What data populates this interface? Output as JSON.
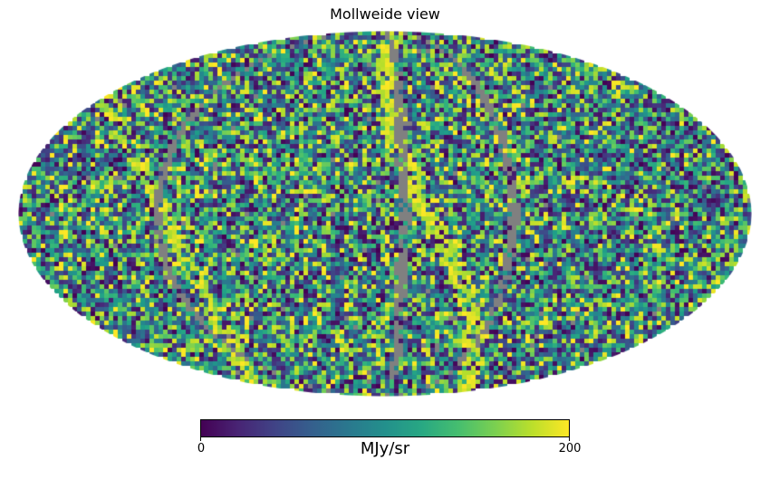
{
  "chart_data": {
    "type": "heatmap",
    "projection": "mollweide",
    "title": "Mollweide view",
    "colormap": "viridis",
    "bad_color": "#808080",
    "colorbar": {
      "min_label": "0",
      "max_label": "200",
      "unit": "MJy/sr",
      "range": [
        0,
        200
      ]
    },
    "grid": false
  }
}
